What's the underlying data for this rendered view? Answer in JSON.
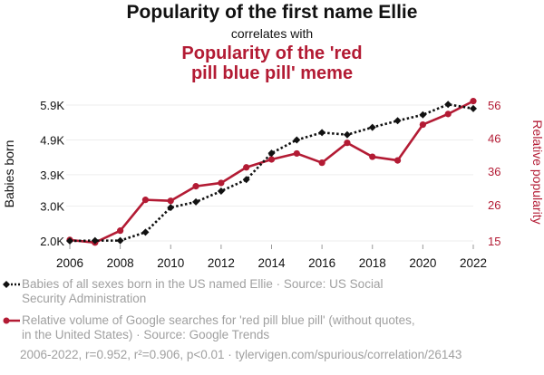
{
  "titles": {
    "main": "Popularity of the first name Ellie",
    "connector": "correlates with",
    "second_line1": "Popularity of the 'red",
    "second_line2": "pill blue pill' meme"
  },
  "colors": {
    "series1": "#111111",
    "series2": "#b31b34",
    "legend_text": "#a0a0a0",
    "grid": "#eeeeee"
  },
  "chart_data": {
    "type": "line",
    "x": [
      2006,
      2007,
      2008,
      2009,
      2010,
      2011,
      2012,
      2013,
      2014,
      2015,
      2016,
      2017,
      2018,
      2019,
      2020,
      2021,
      2022
    ],
    "xlim": [
      2006,
      2022
    ],
    "x_ticks": [
      "2006",
      "2008",
      "2010",
      "2012",
      "2014",
      "2016",
      "2018",
      "2020",
      "2022"
    ],
    "y_left": {
      "label": "Babies born",
      "ticks": [
        "2.0K",
        "3.0K",
        "3.9K",
        "4.9K",
        "5.9K"
      ],
      "tick_values": [
        2000,
        3000,
        3900,
        4900,
        5900
      ],
      "lim": [
        2000,
        5900
      ]
    },
    "y_right": {
      "label": "Relative popularity",
      "ticks": [
        "15",
        "26",
        "36",
        "46",
        "56"
      ],
      "tick_values": [
        15,
        26,
        36,
        46,
        56
      ],
      "lim": [
        15,
        56
      ]
    },
    "series": [
      {
        "name": "Babies of all sexes born in the US named Ellie · Source: US Social Security Administration",
        "axis": "left",
        "style": "dotted-diamond",
        "values": [
          2000,
          2010,
          2010,
          2250,
          2960,
          3120,
          3430,
          3760,
          4520,
          4900,
          5110,
          5050,
          5260,
          5450,
          5620,
          5920,
          5800
        ]
      },
      {
        "name": "Relative volume of Google searches for 'red pill blue pill' (without quotes, in the United States) · Source: Google Trends",
        "axis": "right",
        "style": "solid-dot",
        "values": [
          15.3,
          14.5,
          18.1,
          27.4,
          27.1,
          31.5,
          32.5,
          37.2,
          39.6,
          41.4,
          38.6,
          44.6,
          40.4,
          39.3,
          50.1,
          53.3,
          57.2
        ]
      }
    ]
  },
  "legend": {
    "series1_text": "Babies of all sexes born in the US named Ellie · Source: US Social Security Administration",
    "series2_text": "Relative volume of Google searches for 'red pill blue pill' (without quotes, in the United States) · Source: Google Trends"
  },
  "footer": "2006-2022, r=0.952, r²=0.906, p<0.01 · tylervigen.com/spurious/correlation/26143"
}
